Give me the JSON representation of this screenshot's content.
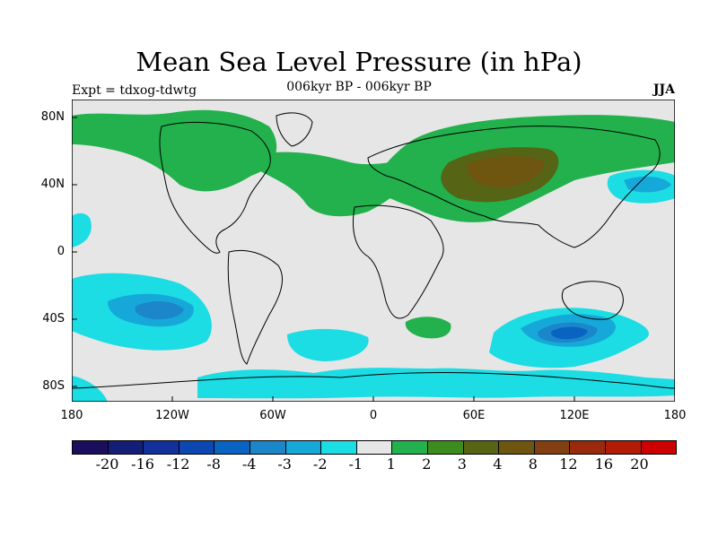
{
  "title": "Mean Sea Level Pressure (in hPa)",
  "subtitle": "006kyr BP - 006kyr BP",
  "expt_label": "Expt = tdxog-tdwtg",
  "season": "JJA",
  "map": {
    "lat_labels": [
      "80N",
      "40N",
      "0",
      "40S",
      "80S"
    ],
    "lon_labels": [
      "180",
      "120W",
      "60W",
      "0",
      "60E",
      "120E",
      "180"
    ]
  },
  "colorbar": {
    "colors": [
      "#1a0f5c",
      "#141e78",
      "#13309c",
      "#0d48b0",
      "#0a63c0",
      "#1b86c9",
      "#16a8d8",
      "#1cdce4",
      "#e6e6e6",
      "#22b14c",
      "#3d8c1e",
      "#566416",
      "#6e5510",
      "#824012",
      "#9a2a0c",
      "#b31a08",
      "#cc0000"
    ],
    "labels": [
      "-20",
      "-16",
      "-12",
      "-8",
      "-4",
      "-3",
      "-2",
      "-1",
      "1",
      "2",
      "3",
      "4",
      "8",
      "12",
      "16",
      "20"
    ]
  }
}
